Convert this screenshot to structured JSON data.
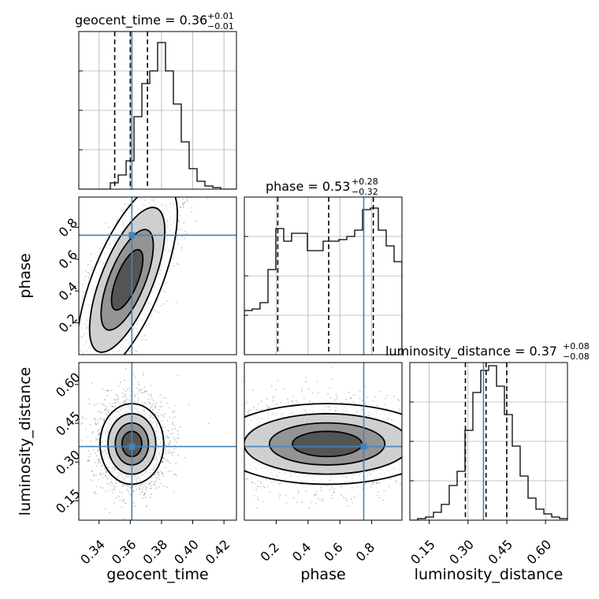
{
  "chart_data": {
    "type": "corner",
    "parameters": [
      "geocent_time",
      "phase",
      "luminosity_distance"
    ],
    "truths": {
      "geocent_time": 0.361,
      "phase": 0.75,
      "luminosity_distance": 0.36
    },
    "truth_color": "#4682b4",
    "titles": [
      {
        "base": "geocent_time = 0.36",
        "sup": "+0.01",
        "sub": "−0.01"
      },
      {
        "base": "phase = 0.53",
        "sup": "+0.28",
        "sub": "−0.32"
      },
      {
        "base": "luminosity_distance = 0.37",
        "sup": "+0.08",
        "sub": "−0.08"
      }
    ],
    "axis_labels": {
      "x": [
        "geocent_time",
        "phase",
        "luminosity_distance"
      ],
      "y": [
        "phase",
        "luminosity_distance"
      ]
    },
    "ticks": {
      "geocent_time": [
        "0.34",
        "0.36",
        "0.38",
        "0.40",
        "0.42"
      ],
      "phase": [
        "0.2",
        "0.4",
        "0.6",
        "0.8"
      ],
      "luminosity_distance": [
        "0.15",
        "0.30",
        "0.45",
        "0.60"
      ]
    },
    "ranges": {
      "geocent_time": [
        0.327,
        0.428
      ],
      "phase": [
        0.0,
        0.99
      ],
      "luminosity_distance": [
        0.075,
        0.685
      ]
    },
    "quantiles": {
      "geocent_time": [
        0.35,
        0.36,
        0.371
      ],
      "phase": [
        0.21,
        0.53,
        0.81
      ],
      "luminosity_distance": [
        0.29,
        0.37,
        0.45
      ]
    },
    "histograms": {
      "geocent_time": [
        0,
        0,
        0,
        0,
        0.04,
        0.09,
        0.18,
        0.46,
        0.67,
        0.75,
        0.93,
        0.75,
        0.54,
        0.3,
        0.13,
        0.05,
        0.02,
        0.01,
        0,
        0
      ],
      "phase": [
        0.28,
        0.29,
        0.33,
        0.54,
        0.8,
        0.72,
        0.77,
        0.77,
        0.66,
        0.66,
        0.72,
        0.72,
        0.73,
        0.75,
        0.79,
        0.92,
        0.93,
        0.79,
        0.69,
        0.59
      ],
      "luminosity_distance": [
        0,
        0.01,
        0.02,
        0.05,
        0.1,
        0.22,
        0.31,
        0.57,
        0.81,
        0.95,
        0.98,
        0.85,
        0.67,
        0.47,
        0.28,
        0.14,
        0.07,
        0.04,
        0.02,
        0.01
      ]
    },
    "density_2d": [
      {
        "x": "geocent_time",
        "y": "phase",
        "cx": 0.358,
        "cy": 0.47,
        "sx": 0.008,
        "sy": 0.27,
        "rho": 0.8
      },
      {
        "x": "geocent_time",
        "y": "luminosity_distance",
        "cx": 0.361,
        "cy": 0.37,
        "sx": 0.0085,
        "sy": 0.065,
        "rho": 0.0
      },
      {
        "x": "phase",
        "y": "luminosity_distance",
        "cx": 0.52,
        "cy": 0.37,
        "sx": 0.29,
        "sy": 0.065,
        "rho": 0.0
      }
    ],
    "grid": true,
    "legend": "none"
  }
}
